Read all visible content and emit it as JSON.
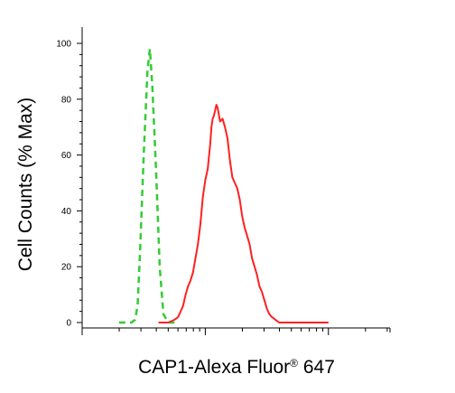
{
  "chart_data": {
    "type": "line",
    "title": "",
    "xlabel": "CAP1-Alexa Fluor",
    "xlabel_reg": "®",
    "xlabel_suffix": " 647",
    "ylabel": "Cell Counts (% Max)",
    "x_scale": "log",
    "x_tick_labels_shown": false,
    "ylim": [
      0,
      100
    ],
    "yticks": [
      "0",
      "20",
      "40",
      "60",
      "80",
      "100"
    ],
    "grid": false,
    "legend": "none",
    "series": [
      {
        "style": "dashed",
        "color": "#33cc33",
        "x": [
          0.3,
          0.36,
          0.4,
          0.43,
          0.45,
          0.47,
          0.5,
          0.53,
          0.55,
          0.57,
          0.6,
          0.63,
          0.66,
          0.7,
          0.75
        ],
        "y": [
          0,
          0,
          0,
          1,
          6,
          25,
          60,
          90,
          98,
          85,
          55,
          20,
          3,
          0,
          0
        ]
      },
      {
        "style": "solid",
        "color": "#ff2020",
        "x": [
          0.62,
          0.7,
          0.75,
          0.78,
          0.8,
          0.82,
          0.84,
          0.86,
          0.88,
          0.9,
          0.92,
          0.94,
          0.96,
          0.98,
          1.0,
          1.02,
          1.04,
          1.05,
          1.06,
          1.07,
          1.08,
          1.09,
          1.1,
          1.12,
          1.14,
          1.16,
          1.18,
          1.2,
          1.22,
          1.24,
          1.26,
          1.28,
          1.3,
          1.32,
          1.34,
          1.36,
          1.38,
          1.4,
          1.42,
          1.44,
          1.46,
          1.48,
          1.5,
          1.52,
          1.54,
          1.57,
          1.6,
          1.65,
          1.75,
          1.9,
          2.0
        ],
        "y": [
          0,
          0,
          1,
          2,
          4,
          6,
          10,
          13,
          15,
          18,
          23,
          28,
          35,
          45,
          51,
          55,
          64,
          70,
          73,
          74,
          76,
          78,
          77,
          72,
          73,
          70,
          66,
          58,
          52,
          50,
          48,
          44,
          38,
          34,
          31,
          28,
          23,
          20,
          17,
          13,
          11,
          8,
          5,
          3,
          2,
          1,
          0,
          0,
          0,
          0,
          0
        ]
      }
    ]
  }
}
